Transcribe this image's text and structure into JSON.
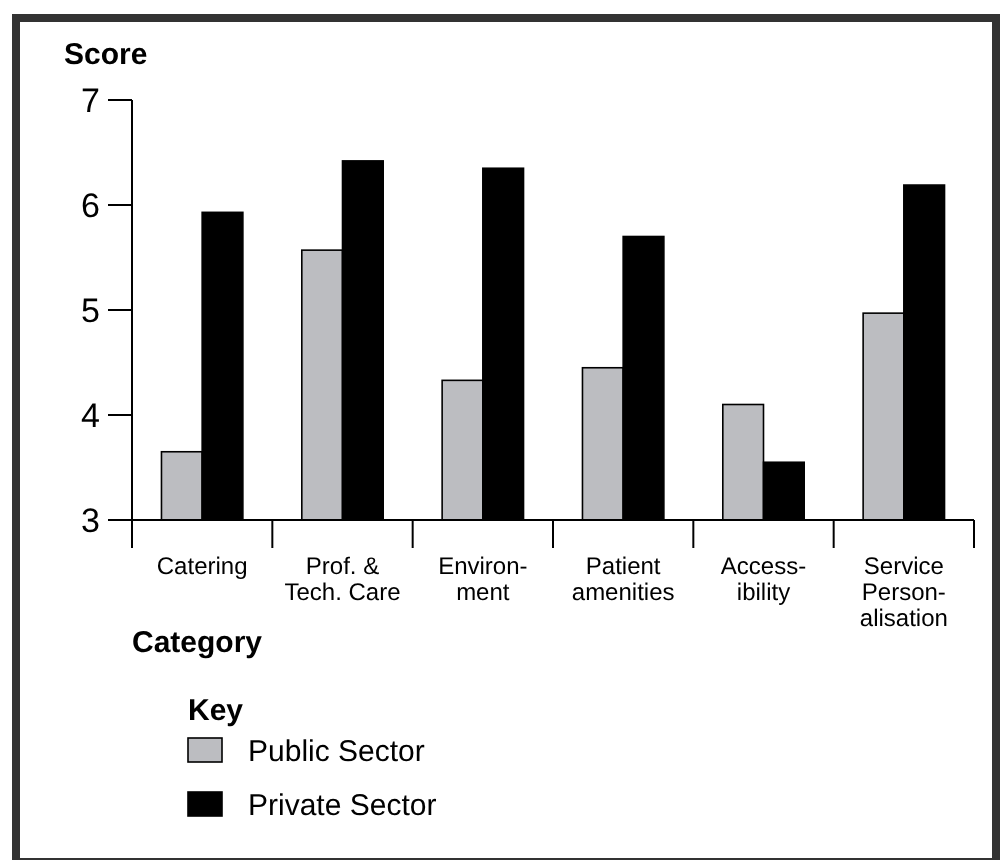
{
  "chart_data": {
    "type": "bar",
    "ylabel": "Score",
    "xlabel": "Category",
    "legend_title": "Key",
    "legend": "bottom",
    "categories": [
      "Catering",
      "Prof. &\nTech. Care",
      "Environ-\nment",
      "Patient\namenities",
      "Access-\nibility",
      "Service\nPerson-\nalisation"
    ],
    "series": [
      {
        "name": "Public Sector",
        "color": "#bcbdc1",
        "values": [
          3.65,
          5.57,
          4.33,
          4.45,
          4.1,
          4.97
        ]
      },
      {
        "name": "Private Sector",
        "color": "#000000",
        "values": [
          5.93,
          6.42,
          6.35,
          5.7,
          3.55,
          6.19
        ]
      }
    ],
    "ylim": [
      3,
      7
    ],
    "yticks": [
      3,
      4,
      5,
      6,
      7
    ],
    "grid": false
  }
}
